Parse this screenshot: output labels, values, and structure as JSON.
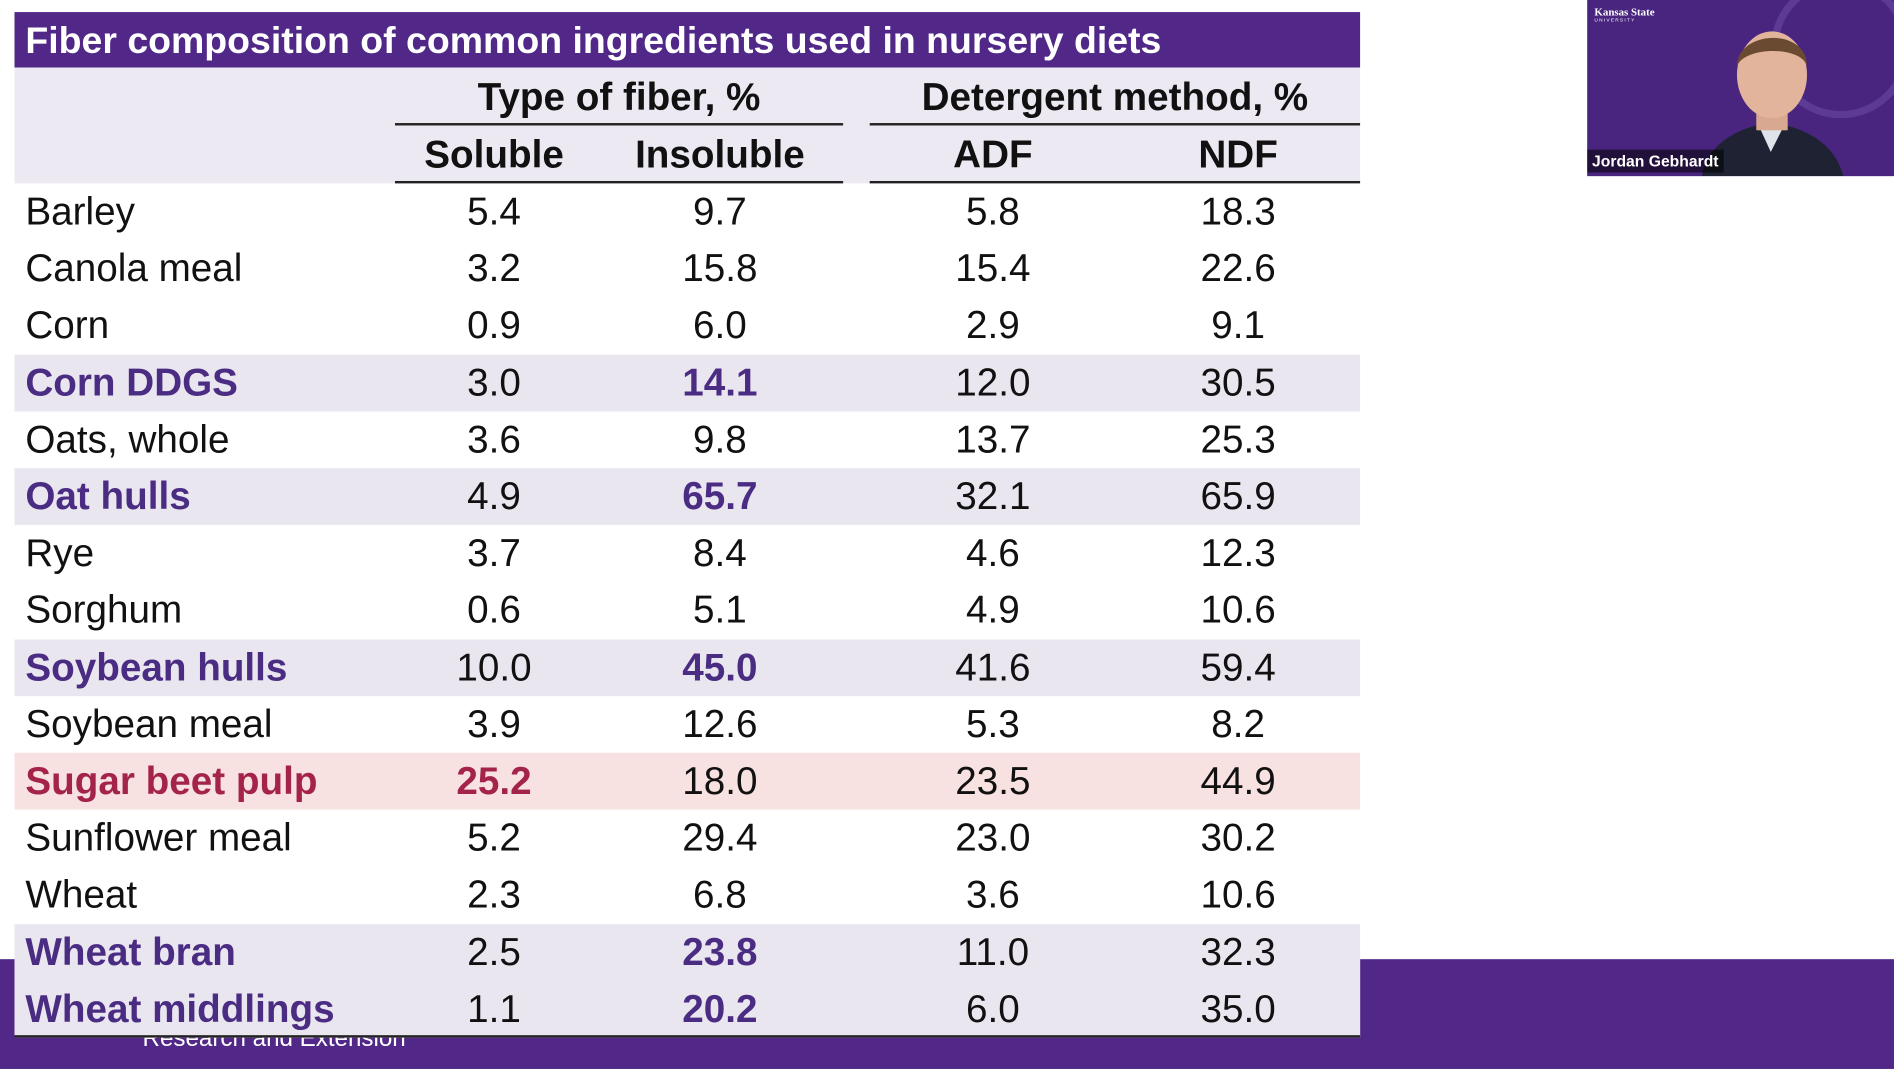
{
  "slide": {
    "title": "Fiber composition of common ingredients used in nursery diets",
    "group_headers": [
      "Type of fiber, %",
      "Detergent method, %"
    ],
    "column_headers": [
      "Soluble",
      "Insoluble",
      "ADF",
      "NDF"
    ],
    "rows": [
      [
        "Barley",
        "5.4",
        "9.7",
        "5.8",
        "18.3"
      ],
      [
        "Canola meal",
        "3.2",
        "15.8",
        "15.4",
        "22.6"
      ],
      [
        "Corn",
        "0.9",
        "6.0",
        "2.9",
        "9.1"
      ],
      [
        "Corn DDGS",
        "3.0",
        "14.1",
        "12.0",
        "30.5"
      ],
      [
        "Oats, whole",
        "3.6",
        "9.8",
        "13.7",
        "25.3"
      ],
      [
        "Oat hulls",
        "4.9",
        "65.7",
        "32.1",
        "65.9"
      ],
      [
        "Rye",
        "3.7",
        "8.4",
        "4.6",
        "12.3"
      ],
      [
        "Sorghum",
        "0.6",
        "5.1",
        "4.9",
        "10.6"
      ],
      [
        "Soybean hulls",
        "10.0",
        "45.0",
        "41.6",
        "59.4"
      ],
      [
        "Soybean meal",
        "3.9",
        "12.6",
        "5.3",
        "8.2"
      ],
      [
        "Sugar beet pulp",
        "25.2",
        "18.0",
        "23.5",
        "44.9"
      ],
      [
        "Sunflower meal",
        "5.2",
        "29.4",
        "23.0",
        "30.2"
      ],
      [
        "Wheat",
        "2.3",
        "6.8",
        "3.6",
        "10.6"
      ],
      [
        "Wheat bran",
        "2.5",
        "23.8",
        "11.0",
        "32.3"
      ],
      [
        "Wheat middlings",
        "1.1",
        "20.2",
        "6.0",
        "35.0"
      ]
    ],
    "footer_text": "Research and Extension"
  },
  "webcam": {
    "logo": "Kansas State",
    "logo_sub": "UNIVERSITY",
    "participant": "Jordan Gebhardt"
  }
}
